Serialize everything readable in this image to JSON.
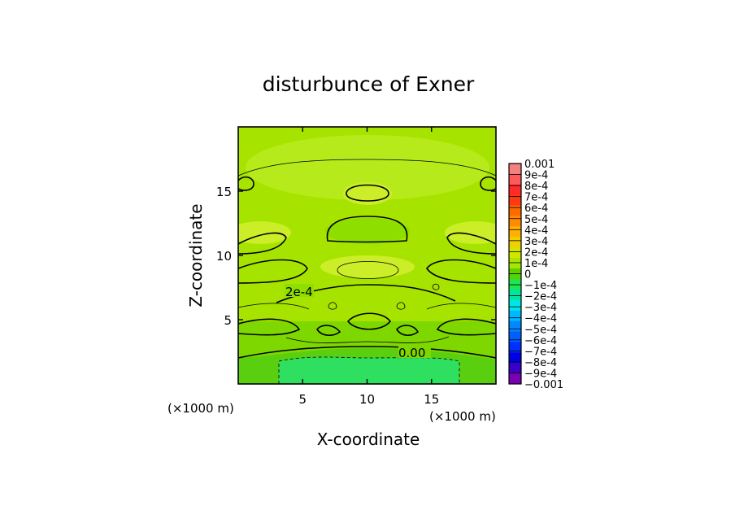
{
  "chart_data": {
    "type": "heatmap",
    "title": "disturbunce of Exner",
    "xlabel": "X-coordinate",
    "ylabel": "Z-coordinate",
    "x_unit": "(×1000 m)",
    "y_unit": "(×1000 m)",
    "xlim": [
      0,
      20
    ],
    "ylim": [
      0,
      20
    ],
    "x_ticks": [
      5,
      10,
      15
    ],
    "y_ticks": [
      5,
      10,
      15
    ],
    "x_tick_labels": [
      "5",
      "10",
      "15"
    ],
    "y_tick_labels": [
      "5",
      "10",
      "15"
    ],
    "contour_labels": [
      "2e-4",
      "0.00"
    ],
    "colorbar": {
      "labels": [
        "0.001",
        "9e-4",
        "8e-4",
        "7e-4",
        "6e-4",
        "5e-4",
        "4e-4",
        "3e-4",
        "2e-4",
        "1e-4",
        "0",
        "−1e-4",
        "−2e-4",
        "−3e-4",
        "−4e-4",
        "−5e-4",
        "−6e-4",
        "−7e-4",
        "−8e-4",
        "−9e-4",
        "−0.001"
      ],
      "colors": [
        "#f58080",
        "#ff5a5a",
        "#ff2b2b",
        "#ff3a10",
        "#ff6a00",
        "#ff8c00",
        "#ffb000",
        "#f0d000",
        "#d2e600",
        "#a8e600",
        "#5ad200",
        "#1ee650",
        "#00e6a0",
        "#00e6e6",
        "#00b8ff",
        "#0088ff",
        "#0060ff",
        "#0030ff",
        "#0000e6",
        "#3a00c8",
        "#7a00b4"
      ]
    }
  }
}
